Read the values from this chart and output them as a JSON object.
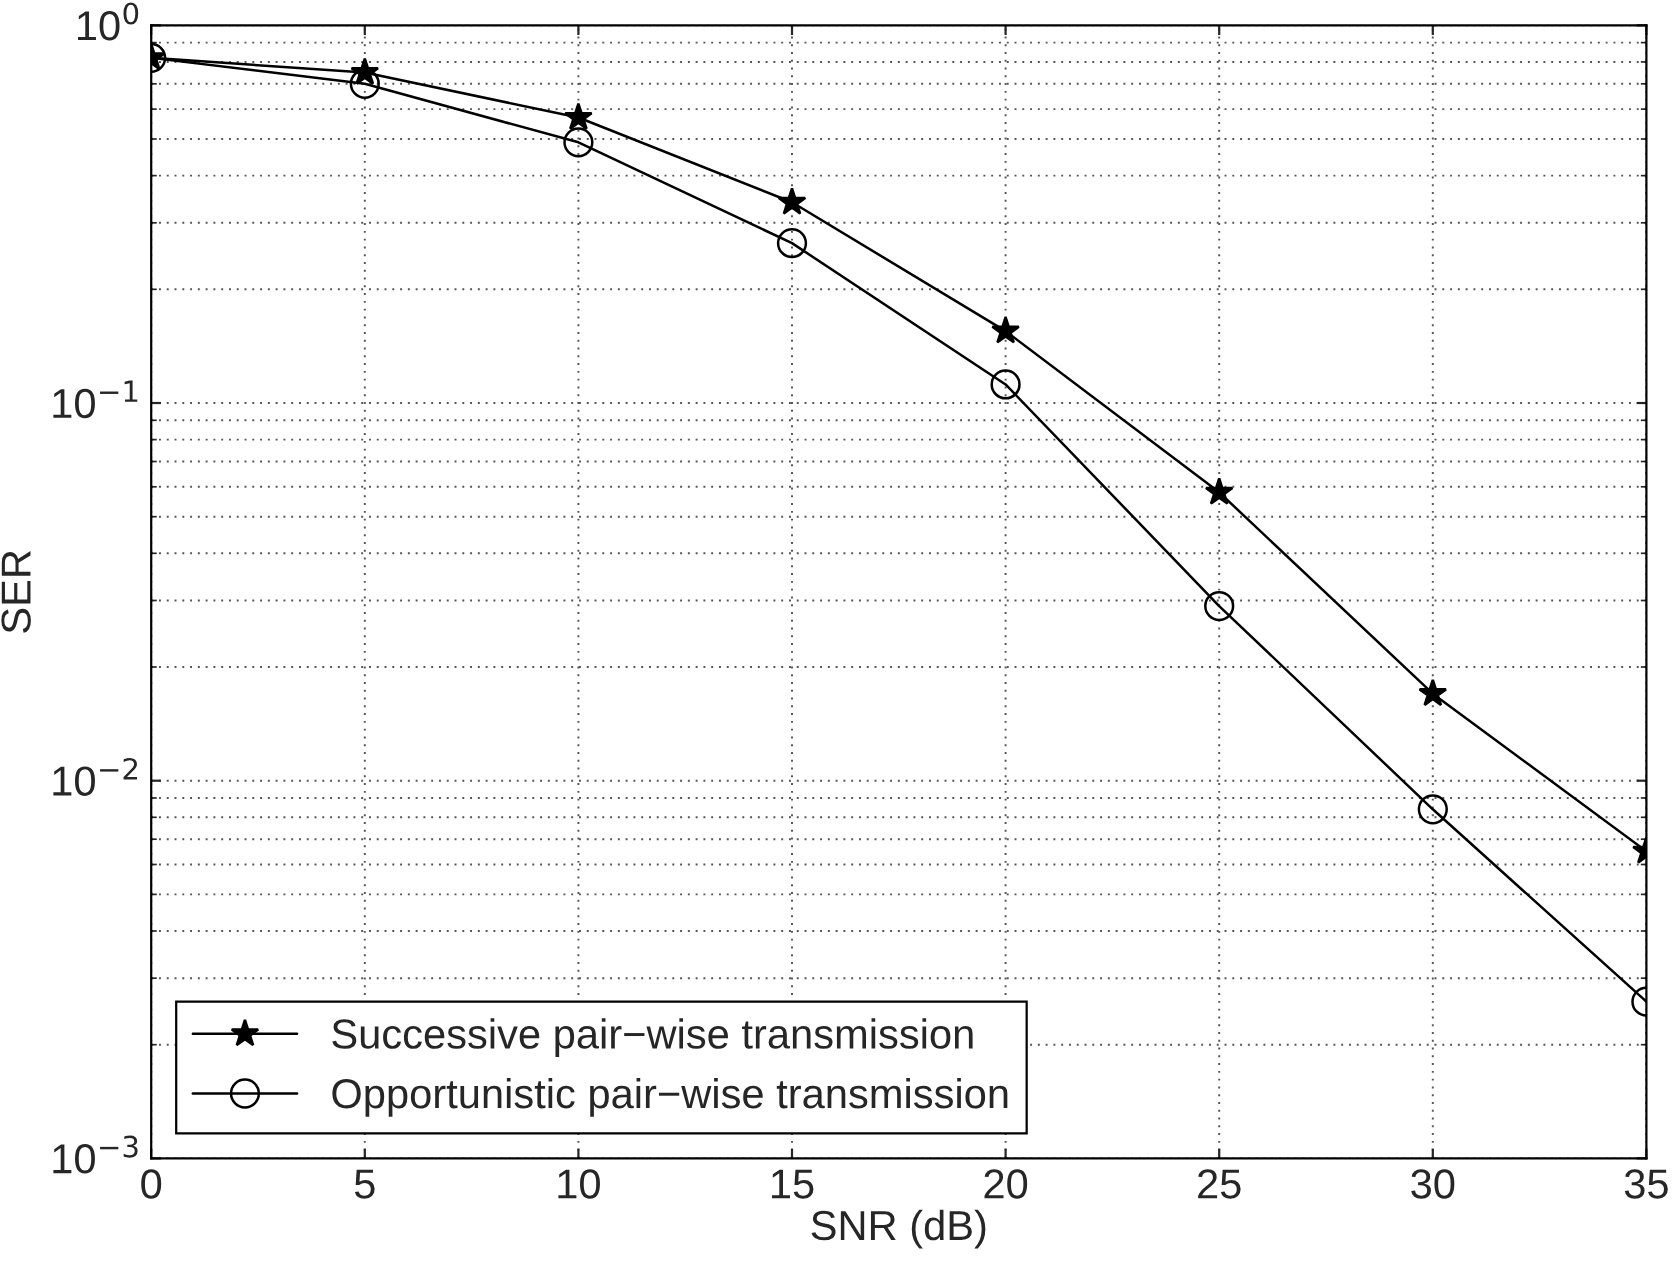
{
  "chart_data": {
    "type": "line",
    "xlabel": "SNR (dB)",
    "ylabel": "SER",
    "x": [
      0,
      5,
      10,
      15,
      20,
      25,
      30,
      35
    ],
    "series": [
      {
        "name": "Successive pair−wise transmission",
        "color": "#000000",
        "marker": "star",
        "values": [
          0.82,
          0.75,
          0.57,
          0.34,
          0.155,
          0.058,
          0.017,
          0.0065
        ]
      },
      {
        "name": "Opportunistic pair−wise transmission",
        "color": "#000000",
        "marker": "circle",
        "values": [
          0.82,
          0.7,
          0.49,
          0.265,
          0.112,
          0.029,
          0.0084,
          0.0026
        ]
      }
    ],
    "log": "y",
    "xlim": [
      0,
      35
    ],
    "xticks": [
      0,
      5,
      10,
      15,
      20,
      25,
      30,
      35
    ],
    "ylim": [
      0.001,
      1
    ],
    "yticks": [
      {
        "value": 0.001,
        "label": "10$^{−3}$"
      },
      {
        "value": 0.01,
        "label": "10$^{−2}$"
      },
      {
        "value": 0.1,
        "label": "10$^{−1}$"
      },
      {
        "value": 1,
        "label": "10$^{0}$"
      }
    ],
    "grid": true,
    "legend": "bottom left",
    "line_style": "solid"
  }
}
